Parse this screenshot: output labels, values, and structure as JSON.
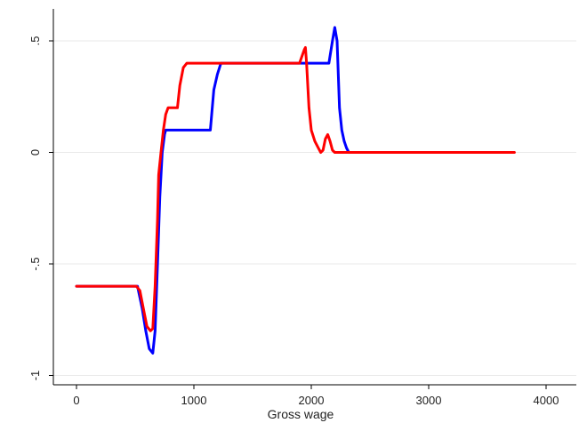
{
  "chart_data": {
    "type": "line",
    "title": "",
    "xlabel": "Gross wage",
    "ylabel": "",
    "xlim": [
      -100,
      4200
    ],
    "ylim": [
      -1.03,
      0.6
    ],
    "grid": "horizontal",
    "x_ticks": [
      0,
      1000,
      2000,
      3000,
      4000
    ],
    "x_tick_labels": [
      "0",
      "1000",
      "2000",
      "3000",
      "4000"
    ],
    "y_ticks": [
      -1,
      -0.5,
      0,
      0.5
    ],
    "y_tick_labels": [
      "-1",
      "-.5",
      "0",
      ".5"
    ],
    "series": [
      {
        "color": "#0000ff",
        "points": [
          [
            0,
            -0.6
          ],
          [
            520,
            -0.6
          ],
          [
            560,
            -0.7
          ],
          [
            590,
            -0.8
          ],
          [
            620,
            -0.88
          ],
          [
            650,
            -0.9
          ],
          [
            670,
            -0.8
          ],
          [
            690,
            -0.5
          ],
          [
            710,
            -0.2
          ],
          [
            730,
            0.0
          ],
          [
            750,
            0.08
          ],
          [
            760,
            0.1
          ],
          [
            900,
            0.1
          ],
          [
            1100,
            0.1
          ],
          [
            1140,
            0.1
          ],
          [
            1170,
            0.28
          ],
          [
            1200,
            0.35
          ],
          [
            1230,
            0.4
          ],
          [
            1500,
            0.4
          ],
          [
            2100,
            0.4
          ],
          [
            2150,
            0.4
          ],
          [
            2180,
            0.5
          ],
          [
            2200,
            0.56
          ],
          [
            2220,
            0.5
          ],
          [
            2240,
            0.2
          ],
          [
            2260,
            0.1
          ],
          [
            2280,
            0.05
          ],
          [
            2300,
            0.02
          ],
          [
            2320,
            0.0
          ]
        ]
      },
      {
        "color": "#ff0000",
        "points": [
          [
            0,
            -0.6
          ],
          [
            510,
            -0.6
          ],
          [
            540,
            -0.62
          ],
          [
            570,
            -0.7
          ],
          [
            600,
            -0.78
          ],
          [
            630,
            -0.8
          ],
          [
            650,
            -0.79
          ],
          [
            670,
            -0.6
          ],
          [
            690,
            -0.3
          ],
          [
            700,
            -0.1
          ],
          [
            720,
            0.0
          ],
          [
            740,
            0.1
          ],
          [
            760,
            0.17
          ],
          [
            780,
            0.2
          ],
          [
            860,
            0.2
          ],
          [
            880,
            0.3
          ],
          [
            910,
            0.38
          ],
          [
            940,
            0.4
          ],
          [
            1300,
            0.4
          ],
          [
            1900,
            0.4
          ],
          [
            1920,
            0.43
          ],
          [
            1940,
            0.46
          ],
          [
            1950,
            0.47
          ],
          [
            1960,
            0.4
          ],
          [
            1980,
            0.2
          ],
          [
            2000,
            0.1
          ],
          [
            2030,
            0.05
          ],
          [
            2060,
            0.02
          ],
          [
            2080,
            0.0
          ],
          [
            2100,
            0.01
          ],
          [
            2120,
            0.06
          ],
          [
            2140,
            0.08
          ],
          [
            2160,
            0.05
          ],
          [
            2180,
            0.01
          ],
          [
            2200,
            0.0
          ],
          [
            3000,
            0.0
          ],
          [
            3730,
            0.0
          ]
        ]
      }
    ]
  }
}
